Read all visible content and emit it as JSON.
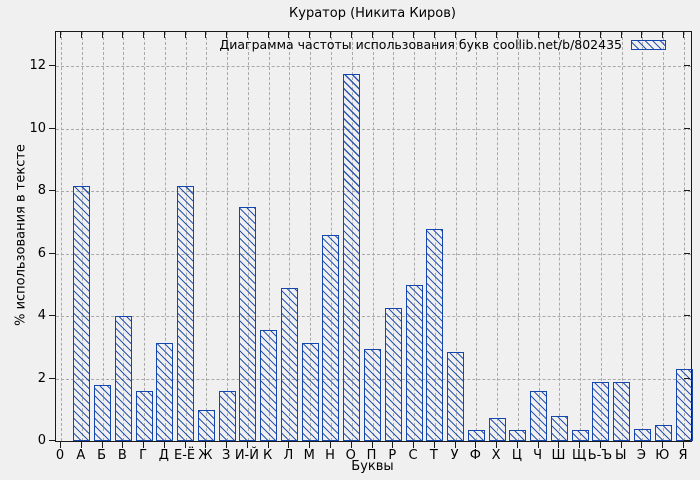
{
  "title": "Куратор (Никита Киров)",
  "legend": {
    "label": "Диаграмма частоты использования букв coollib.net/b/802435"
  },
  "axes": {
    "x_label": "Буквы",
    "y_label": "% использования в тексте",
    "x_origin_label": "0"
  },
  "colors": {
    "bar_blue": "#1546ad",
    "grid_gray": "#a9a9a9",
    "background": "#f0f0f0",
    "border": "#1a1a1a"
  },
  "chart_data": {
    "type": "bar",
    "title": "Куратор (Никита Киров)",
    "series_label": "Диаграмма частоты использования букв coollib.net/b/802435",
    "categories": [
      "А",
      "Б",
      "В",
      "Г",
      "Д",
      "Е-Ё",
      "Ж",
      "З",
      "И-Й",
      "К",
      "Л",
      "М",
      "Н",
      "О",
      "П",
      "Р",
      "С",
      "Т",
      "У",
      "Ф",
      "Х",
      "Ц",
      "Ч",
      "Ш",
      "Щ",
      "Ь-Ъ",
      "Ы",
      "Э",
      "Ю",
      "Я"
    ],
    "values": [
      8.15,
      1.8,
      4.0,
      1.6,
      3.15,
      8.15,
      1.0,
      1.6,
      7.5,
      3.55,
      4.9,
      3.15,
      6.6,
      11.75,
      2.95,
      4.25,
      5.0,
      6.8,
      2.85,
      0.35,
      0.75,
      0.35,
      1.6,
      0.8,
      0.35,
      1.9,
      1.9,
      0.4,
      0.5,
      2.3
    ],
    "xlabel": "Буквы",
    "ylabel": "% использования в тексте",
    "x_origin_label": "0",
    "yticks": [
      0,
      2,
      4,
      6,
      8,
      10,
      12
    ],
    "ylim": [
      0,
      13.09
    ],
    "grid": true,
    "legend_position": "top-right",
    "bar_style": "blue-diagonal-hatch"
  }
}
